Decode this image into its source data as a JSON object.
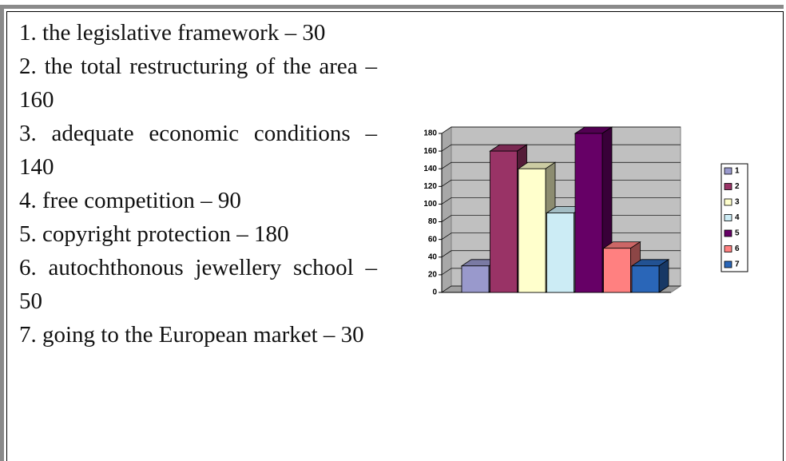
{
  "items": [
    "1. the legislative framework – 30",
    "2. the total restructuring of the area – 160",
    "3. adequate economic conditions – 140",
    "4. free competition – 90",
    "5. copyright protection – 180",
    "6. autochthonous jewellery school – 50",
    "7. going to the European market – 30"
  ],
  "chart_data": {
    "type": "bar",
    "categories": [
      "1",
      "2",
      "3",
      "4",
      "5",
      "6",
      "7"
    ],
    "values": [
      30,
      160,
      140,
      90,
      180,
      50,
      30
    ],
    "colors": [
      "#9999cc",
      "#993366",
      "#ffffcc",
      "#ccecf5",
      "#660066",
      "#ff8080",
      "#2a66b8"
    ],
    "ylim": [
      0,
      180
    ],
    "yticks": [
      0,
      20,
      40,
      60,
      80,
      100,
      120,
      140,
      160,
      180
    ],
    "grid": true,
    "legend": "right"
  }
}
